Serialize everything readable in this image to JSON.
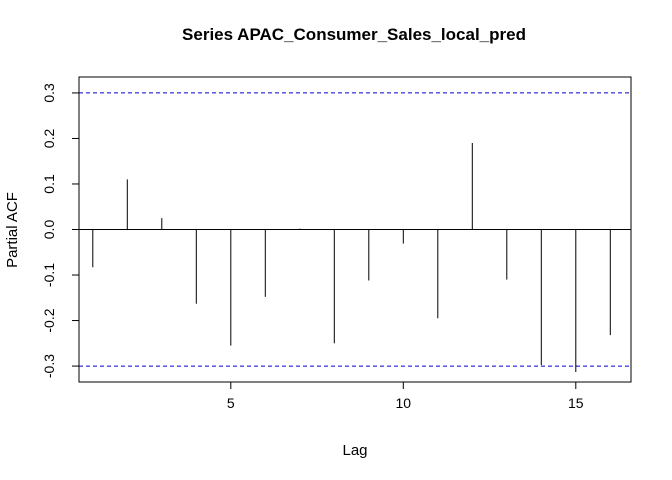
{
  "chart_data": {
    "type": "bar",
    "title": "Series  APAC_Consumer_Sales_local_pred",
    "xlabel": "Lag",
    "ylabel": "Partial ACF",
    "xlim": [
      0.6,
      16.6
    ],
    "ylim": [
      -0.335,
      0.335
    ],
    "x_ticks": [
      5,
      10,
      15
    ],
    "y_ticks": [
      -0.3,
      -0.2,
      -0.1,
      0.0,
      0.1,
      0.2,
      0.3
    ],
    "y_tick_labels": [
      "-0.3",
      "-0.2",
      "-0.1",
      "0.0",
      "0.1",
      "0.2",
      "0.3"
    ],
    "confidence_bound": 0.3,
    "confidence_color": "#0000CD",
    "grid": false,
    "lags": [
      1,
      2,
      3,
      4,
      5,
      6,
      7,
      8,
      9,
      10,
      11,
      12,
      13,
      14,
      15,
      16
    ],
    "values": [
      -0.083,
      0.11,
      0.025,
      -0.163,
      -0.255,
      -0.148,
      0.002,
      -0.25,
      -0.112,
      -0.031,
      -0.195,
      0.19,
      -0.11,
      -0.298,
      -0.313,
      -0.232
    ]
  }
}
